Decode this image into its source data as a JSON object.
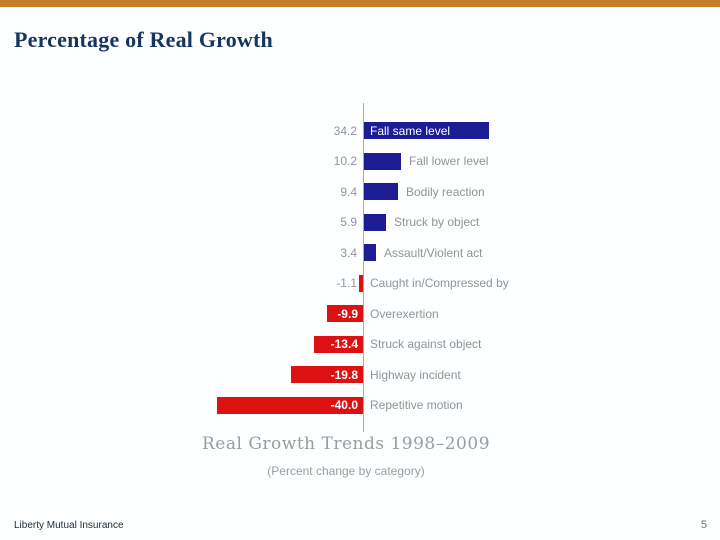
{
  "slide": {
    "title": "Percentage of Real Growth",
    "footer_left": "Liberty Mutual Insurance",
    "page_number": "5",
    "accent_color": "#c87e2f",
    "title_color": "#17365d"
  },
  "chart_data": {
    "type": "bar",
    "orientation": "horizontal",
    "title": "Real Growth Trends 1998–2009",
    "subtitle": "(Percent change by category)",
    "categories": [
      "Fall same level",
      "Fall lower level",
      "Bodily reaction",
      "Struck by object",
      "Assault/Violent act",
      "Caught in/Compressed by",
      "Overexertion",
      "Struck against object",
      "Highway incident",
      "Repetitive motion"
    ],
    "values": [
      34.2,
      10.2,
      9.4,
      5.9,
      3.4,
      -1.1,
      -9.9,
      -13.4,
      -19.8,
      -40.0
    ],
    "value_labels": [
      "34.2",
      "10.2",
      "9.4",
      "5.9",
      "3.4",
      "-1.1",
      "-9.9",
      "-13.4",
      "-19.8",
      "-40.0"
    ],
    "positive_color": "#1c1c94",
    "negative_color": "#dd1111",
    "axis_color": "#ababab",
    "label_color": "#949494",
    "xlim": [
      -40,
      34.2
    ],
    "grid": false,
    "legend": false
  }
}
